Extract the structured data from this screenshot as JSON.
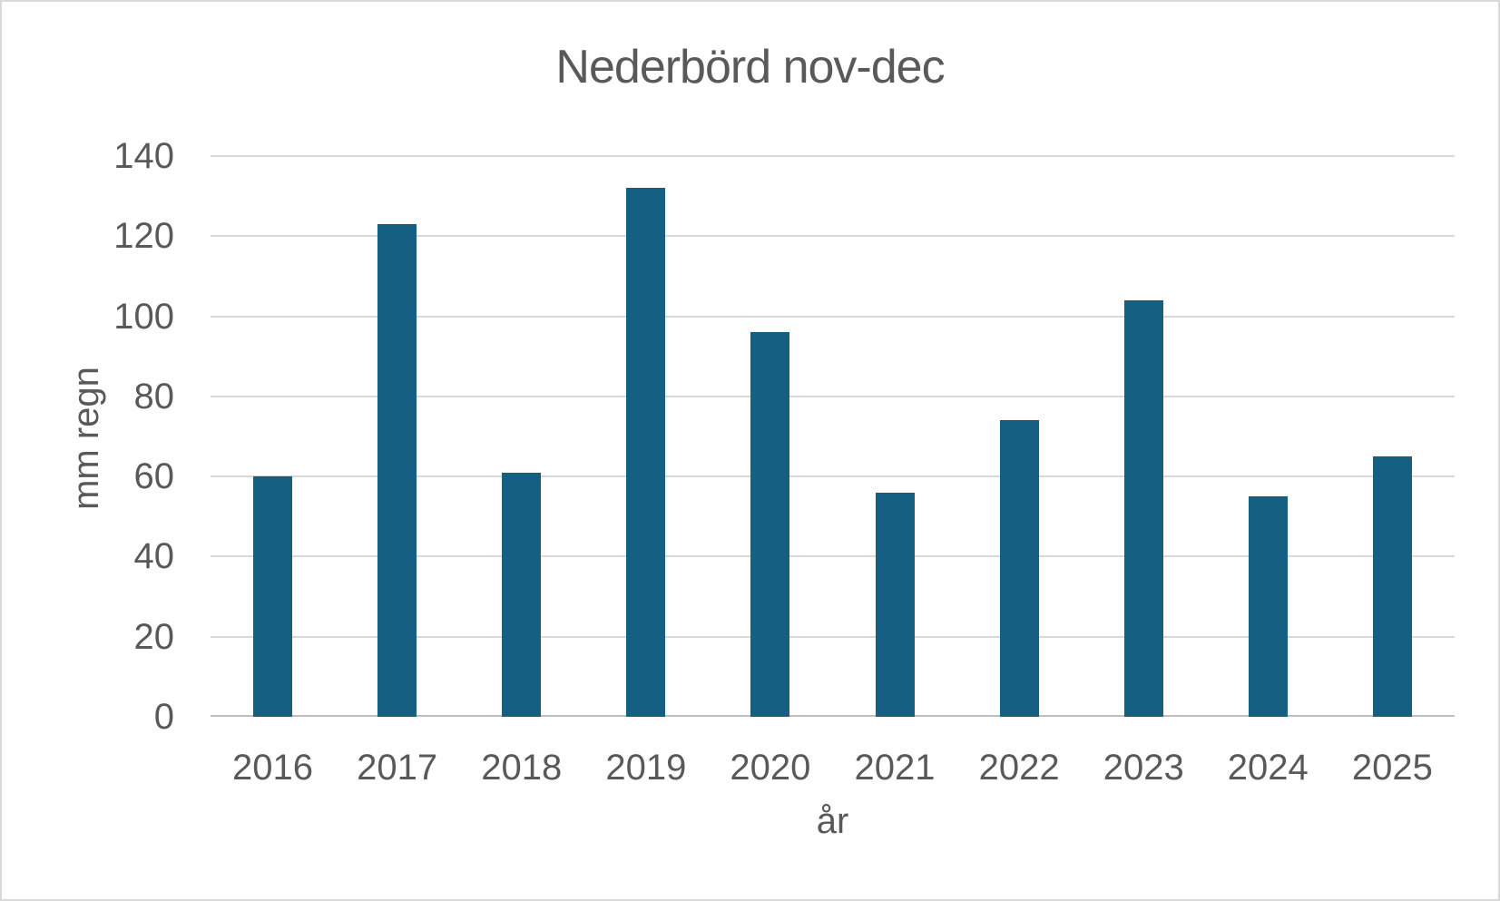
{
  "chart_data": {
    "type": "bar",
    "title": "Nederbörd nov-dec",
    "xlabel": "år",
    "ylabel": "mm regn",
    "categories": [
      "2016",
      "2017",
      "2018",
      "2019",
      "2020",
      "2021",
      "2022",
      "2023",
      "2024",
      "2025"
    ],
    "values": [
      60,
      123,
      61,
      132,
      96,
      56,
      74,
      104,
      55,
      65
    ],
    "ylim": [
      0,
      140
    ],
    "yticks": [
      0,
      20,
      40,
      60,
      80,
      100,
      120,
      140
    ],
    "grid": "horizontal-only",
    "legend": "none",
    "colors": {
      "bar": "#156082",
      "text": "#595959",
      "gridline": "#d9d9d9",
      "axis_line": "#bfbfbf",
      "background": "#ffffff",
      "border": "#d9d9d9"
    }
  }
}
